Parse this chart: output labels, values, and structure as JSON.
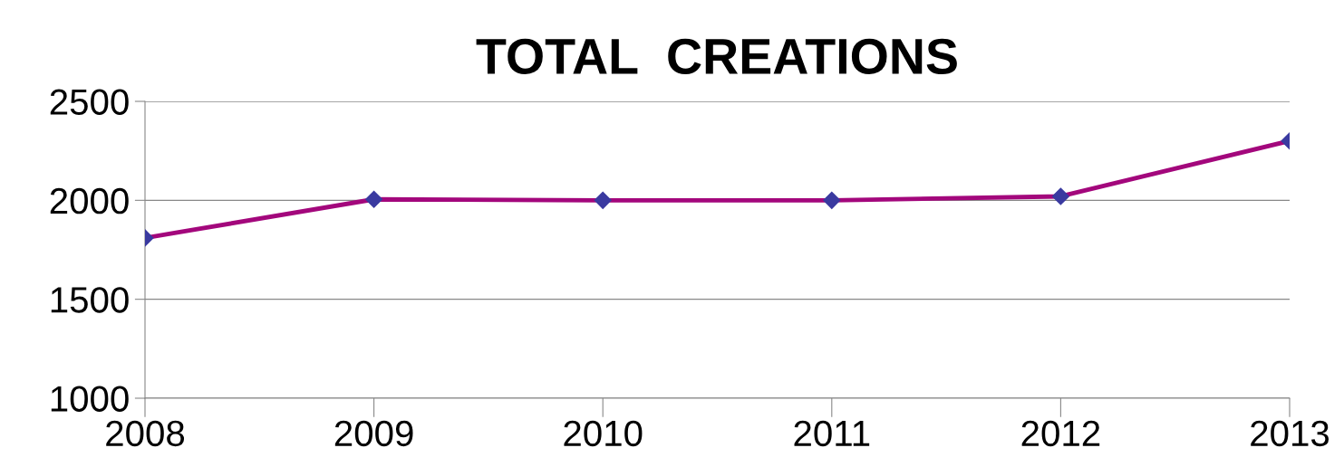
{
  "chart_data": {
    "type": "line",
    "title": "TOTAL  CREATIONS",
    "categories": [
      "2008",
      "2009",
      "2010",
      "2011",
      "2012",
      "2013"
    ],
    "series": [
      {
        "color": "#a3077c",
        "values": [
          1810,
          2005,
          2000,
          2000,
          2020,
          2300
        ]
      }
    ],
    "marker": "diamond",
    "line_style": "solid",
    "ylim": [
      1000,
      2500
    ],
    "yticks": [
      1000,
      1500,
      2000,
      2500
    ],
    "grid": "y",
    "legend": false
  }
}
